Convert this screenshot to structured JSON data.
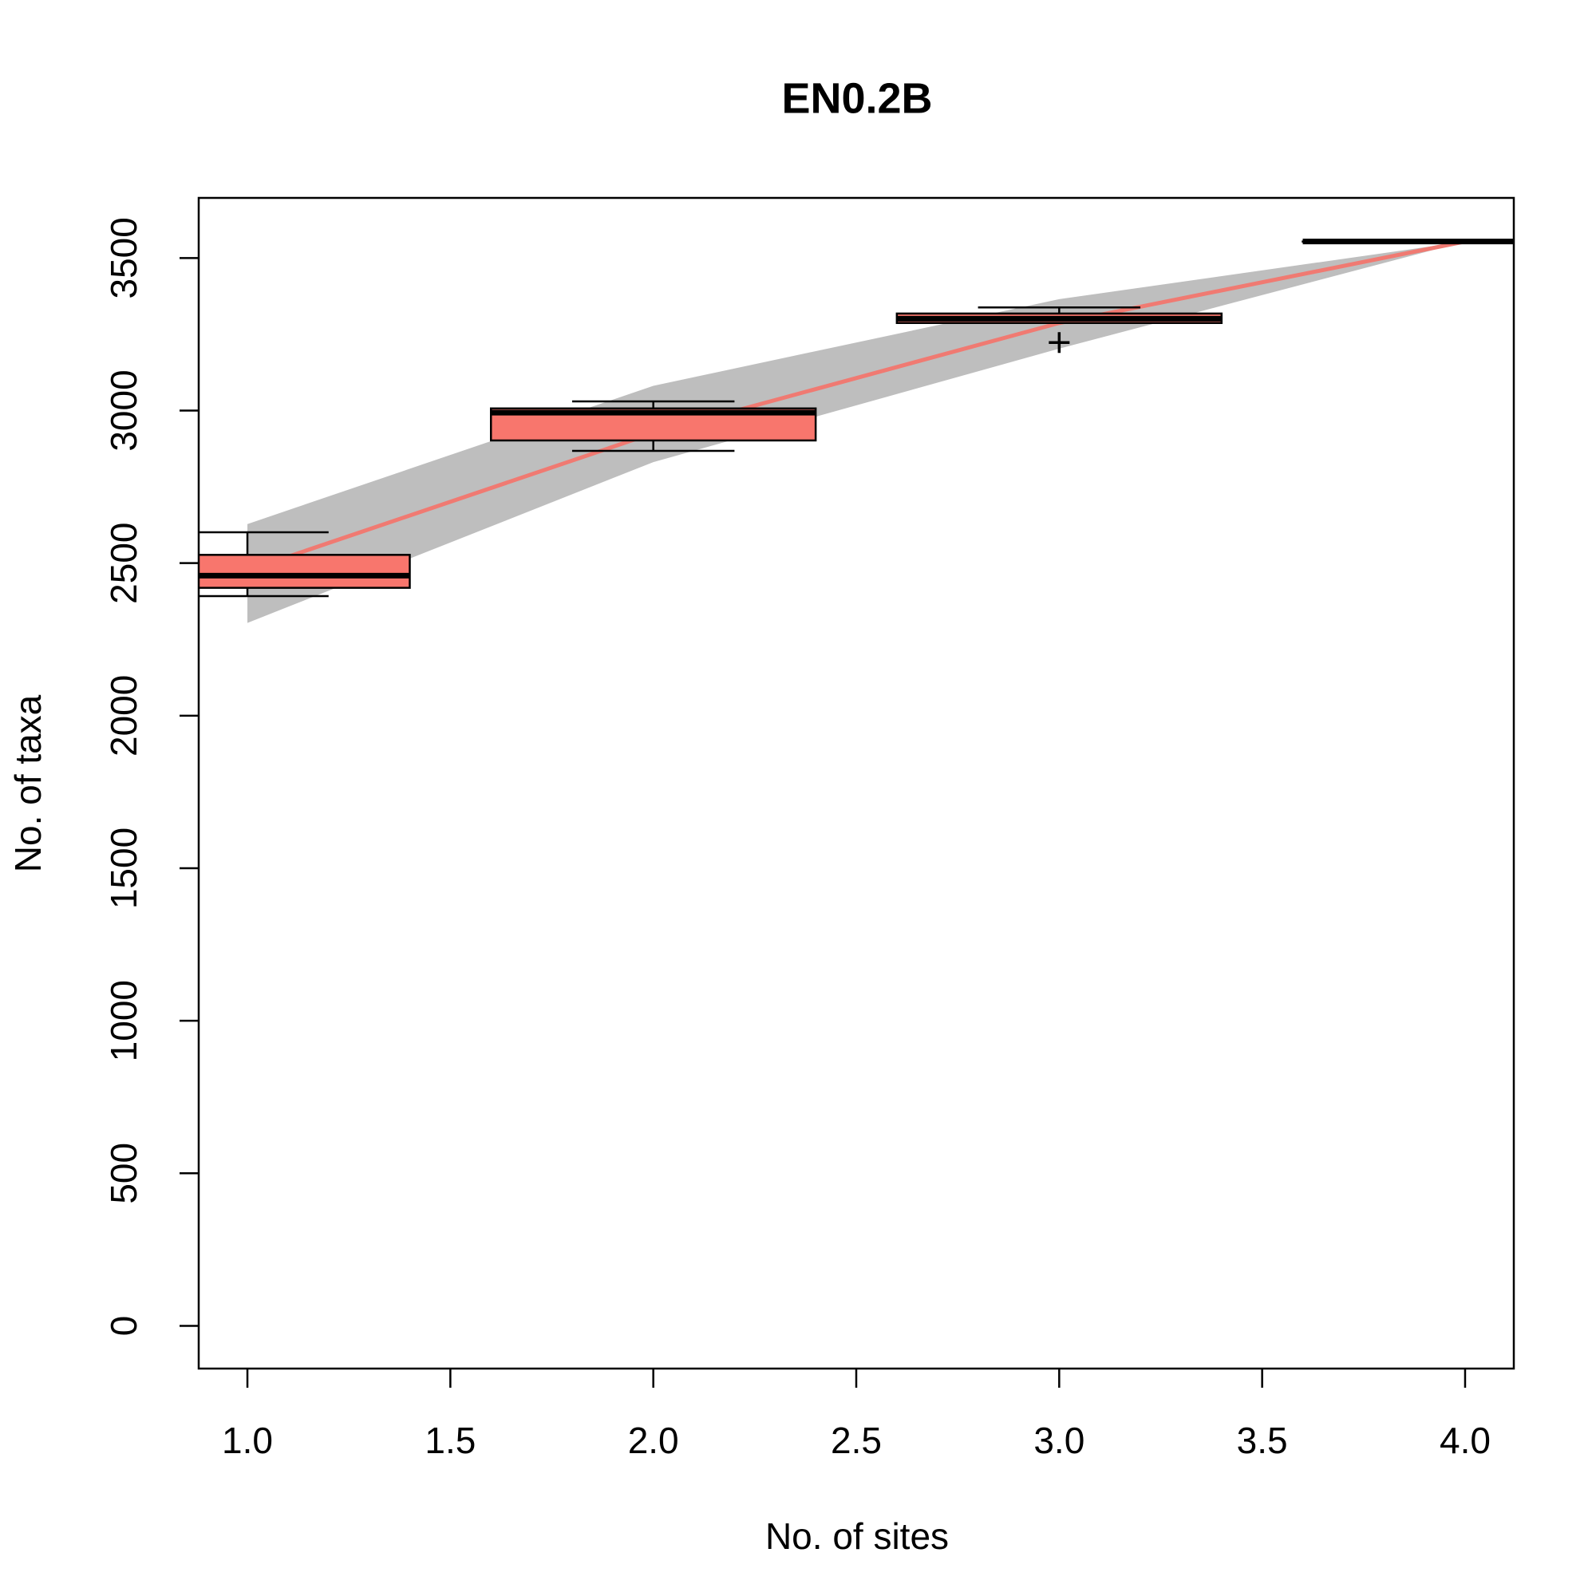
{
  "chart_data": {
    "type": "boxplot",
    "title": "EN0.2B",
    "xlabel": "No. of sites",
    "ylabel": "No. of taxa",
    "x": [
      1,
      2,
      3,
      4
    ],
    "values": [
      2476,
      2926,
      3287,
      3554
    ],
    "band_upper": [
      2628,
      3081,
      3365,
      3554
    ],
    "band_lower": [
      2304,
      2831,
      3203,
      3554
    ],
    "line_color": "#f07a72",
    "band_color": "#bebebe",
    "box_color": "#f8766d",
    "boxes": [
      {
        "min": 2392,
        "q1": 2419,
        "median": 2459,
        "q3": 2527,
        "max": 2601
      },
      {
        "min": 2868,
        "q1": 2902,
        "median": 2993,
        "q3": 3007,
        "max": 3030
      },
      {
        "min": 3287,
        "q1": 3287,
        "median": 3301,
        "q3": 3318,
        "max": 3338
      },
      {
        "min": 3554,
        "q1": 3554,
        "median": 3554,
        "q3": 3554,
        "max": 3554
      }
    ],
    "outliers": [
      {
        "x": 3,
        "y": 3223
      }
    ],
    "xlim": [
      0.88,
      4.12
    ],
    "ylim": [
      -140,
      3697
    ],
    "xticks": [
      {
        "value": 1,
        "label": "1.0"
      },
      {
        "value": 1.5,
        "label": "1.5"
      },
      {
        "value": 2,
        "label": "2.0"
      },
      {
        "value": 2.5,
        "label": "2.5"
      },
      {
        "value": 3,
        "label": "3.0"
      },
      {
        "value": 3.5,
        "label": "3.5"
      },
      {
        "value": 4,
        "label": "4.0"
      }
    ],
    "yticks": [
      0,
      500,
      1000,
      1500,
      2000,
      2500,
      3000,
      3500
    ]
  }
}
